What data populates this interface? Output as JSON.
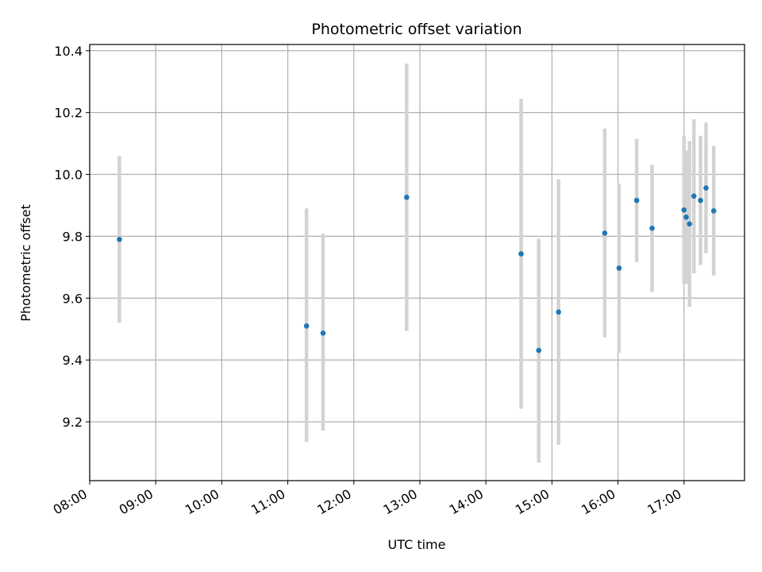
{
  "chart_data": {
    "type": "scatter",
    "title": "Photometric offset variation",
    "xlabel": "UTC time",
    "ylabel": "Photometric offset",
    "grid": true,
    "legend": "none",
    "xlim": [
      "08:00",
      "17:55"
    ],
    "ylim": [
      9.01,
      10.42
    ],
    "x_ticks": [
      "08:00",
      "09:00",
      "10:00",
      "11:00",
      "12:00",
      "13:00",
      "14:00",
      "15:00",
      "16:00",
      "17:00"
    ],
    "y_ticks": [
      9.2,
      9.4,
      9.6,
      9.8,
      10.0,
      10.2,
      10.4
    ],
    "colors": {
      "points": "#1f77b4",
      "errorbars": "#d3d3d3",
      "grid": "#b0b0b0"
    },
    "points": [
      {
        "x": "08:27",
        "y": 9.79,
        "yerr_low": 9.52,
        "yerr_high": 10.06
      },
      {
        "x": "11:17",
        "y": 9.51,
        "yerr_low": 9.135,
        "yerr_high": 9.89
      },
      {
        "x": "11:32",
        "y": 9.487,
        "yerr_low": 9.172,
        "yerr_high": 9.808
      },
      {
        "x": "12:48",
        "y": 9.926,
        "yerr_low": 9.494,
        "yerr_high": 10.358
      },
      {
        "x": "14:32",
        "y": 9.743,
        "yerr_low": 9.242,
        "yerr_high": 10.244
      },
      {
        "x": "14:48",
        "y": 9.431,
        "yerr_low": 9.068,
        "yerr_high": 9.792
      },
      {
        "x": "15:06",
        "y": 9.555,
        "yerr_low": 9.126,
        "yerr_high": 9.984
      },
      {
        "x": "15:48",
        "y": 9.81,
        "yerr_low": 9.473,
        "yerr_high": 10.148
      },
      {
        "x": "16:01",
        "y": 9.697,
        "yerr_low": 9.423,
        "yerr_high": 9.97
      },
      {
        "x": "16:17",
        "y": 9.916,
        "yerr_low": 9.717,
        "yerr_high": 10.115
      },
      {
        "x": "16:31",
        "y": 9.826,
        "yerr_low": 9.62,
        "yerr_high": 10.031
      },
      {
        "x": "17:00",
        "y": 9.885,
        "yerr_low": 9.645,
        "yerr_high": 10.124
      },
      {
        "x": "17:02",
        "y": 9.862,
        "yerr_low": 9.647,
        "yerr_high": 10.077
      },
      {
        "x": "17:05",
        "y": 9.84,
        "yerr_low": 9.572,
        "yerr_high": 10.108
      },
      {
        "x": "17:09",
        "y": 9.93,
        "yerr_low": 9.68,
        "yerr_high": 10.178
      },
      {
        "x": "17:15",
        "y": 9.916,
        "yerr_low": 9.707,
        "yerr_high": 10.125
      },
      {
        "x": "17:20",
        "y": 9.956,
        "yerr_low": 9.745,
        "yerr_high": 10.168
      },
      {
        "x": "17:27",
        "y": 9.882,
        "yerr_low": 9.673,
        "yerr_high": 10.092
      }
    ]
  }
}
